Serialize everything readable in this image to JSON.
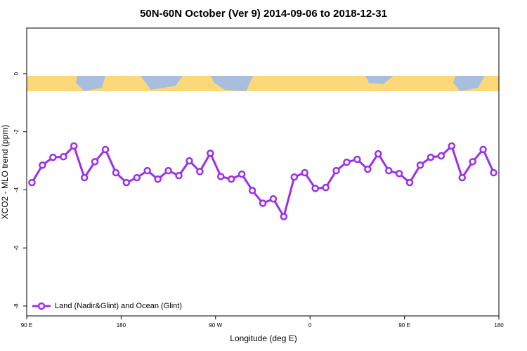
{
  "chart_data": {
    "type": "line",
    "title": "50N-60N October (Ver 9)   2014-09-06 to 2018-12-31",
    "x_label": "Longitude (deg E)",
    "y_label": "XCO2 - MLO trend (ppm)",
    "xlim": [
      90,
      540
    ],
    "xticks": [
      {
        "value": 90,
        "label": "90 E"
      },
      {
        "value": 180,
        "label": "180"
      },
      {
        "value": 270,
        "label": "90 W"
      },
      {
        "value": 360,
        "label": "0"
      },
      {
        "value": 450,
        "label": "90 E"
      },
      {
        "value": 540,
        "label": "180"
      }
    ],
    "ylim": [
      -8.34,
      1.57
    ],
    "yticks": [
      0,
      -2,
      -4,
      -6,
      -8
    ],
    "x": [
      95,
      105,
      115,
      125,
      135,
      145,
      155,
      165,
      175,
      185,
      195,
      205,
      215,
      225,
      235,
      245,
      255,
      265,
      275,
      285,
      295,
      305,
      315,
      325,
      335,
      345,
      355,
      365,
      375,
      385,
      395,
      405,
      415,
      425,
      435,
      445,
      455,
      465,
      475,
      485,
      495,
      505,
      515,
      525,
      535
    ],
    "series": [
      {
        "name": "Land (Nadir&Glint) and Ocean (Glint)",
        "color": "#9b30e8",
        "values": [
          -3.75,
          -3.15,
          -2.88,
          -2.86,
          -2.49,
          -3.58,
          -3.03,
          -2.61,
          -3.41,
          -3.75,
          -3.58,
          -3.34,
          -3.63,
          -3.34,
          -3.51,
          -3.0,
          -3.37,
          -2.74,
          -3.54,
          -3.63,
          -3.46,
          -4.02,
          -4.46,
          -4.31,
          -4.92,
          -3.56,
          -3.41,
          -3.95,
          -3.92,
          -3.34,
          -3.05,
          -2.95,
          -3.29,
          -2.76,
          -3.34,
          -3.44,
          -3.75,
          -3.15,
          -2.88,
          -2.83,
          -2.49,
          -3.58,
          -3.03,
          -2.61,
          -3.41
        ]
      }
    ],
    "legend": "bottom-left"
  }
}
